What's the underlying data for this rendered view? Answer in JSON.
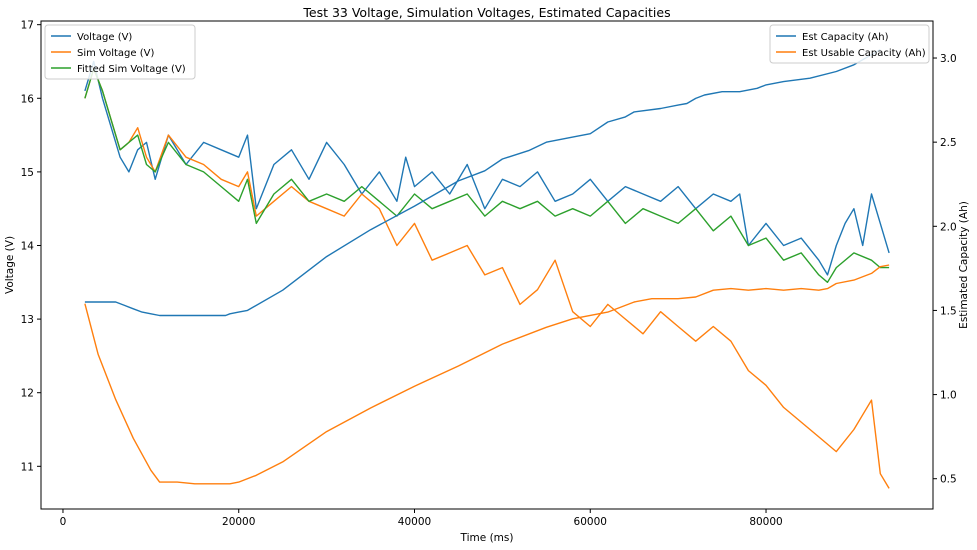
{
  "chart_data": {
    "type": "line",
    "title": "Test 33 Voltage, Simulation Voltages, Estimated Capacities",
    "xlabel": "Time (ms)",
    "ylabel_left": "Voltage (V)",
    "ylabel_right": "Estimated Capacity (Ah)",
    "xlim": [
      -2500,
      99000
    ],
    "ylim_left": [
      10.42,
      17.05
    ],
    "ylim_right": [
      0.32,
      3.22
    ],
    "x_ticks": [
      "0",
      "20000",
      "40000",
      "60000",
      "80000"
    ],
    "x_tick_values": [
      0,
      20000,
      40000,
      60000,
      80000
    ],
    "y_left_ticks": [
      "11",
      "12",
      "13",
      "14",
      "15",
      "16",
      "17"
    ],
    "y_left_tick_values": [
      11,
      12,
      13,
      14,
      15,
      16,
      17
    ],
    "y_right_ticks": [
      "0.5",
      "1.0",
      "1.5",
      "2.0",
      "2.5",
      "3.0"
    ],
    "y_right_tick_values": [
      0.5,
      1.0,
      1.5,
      2.0,
      2.5,
      3.0
    ],
    "grid": false,
    "legend_left_position": "top-left",
    "legend_right_position": "top-right",
    "series": [
      {
        "name": "Voltage (V)",
        "axis": "left",
        "color": "#1f77b4",
        "x": [
          2500,
          3500,
          4500,
          5500,
          6500,
          7500,
          8500,
          9500,
          10500,
          12000,
          14000,
          16000,
          18000,
          20000,
          21000,
          22000,
          24000,
          26000,
          28000,
          30000,
          32000,
          34000,
          36000,
          38000,
          39000,
          40000,
          42000,
          44000,
          46000,
          48000,
          50000,
          52000,
          54000,
          56000,
          58000,
          60000,
          62000,
          64000,
          66000,
          68000,
          70000,
          72000,
          74000,
          76000,
          77000,
          78000,
          80000,
          82000,
          84000,
          86000,
          87000,
          88000,
          89000,
          90000,
          91000,
          92000,
          93000,
          94000
        ],
        "y": [
          16.1,
          16.5,
          16.0,
          15.6,
          15.2,
          15.0,
          15.3,
          15.4,
          14.9,
          15.5,
          15.1,
          15.4,
          15.3,
          15.2,
          15.5,
          14.5,
          15.1,
          15.3,
          14.9,
          15.4,
          15.1,
          14.7,
          15.0,
          14.6,
          15.2,
          14.8,
          15.0,
          14.7,
          15.1,
          14.5,
          14.9,
          14.8,
          15.0,
          14.6,
          14.7,
          14.9,
          14.6,
          14.8,
          14.7,
          14.6,
          14.8,
          14.5,
          14.7,
          14.6,
          14.7,
          14.0,
          14.3,
          14.0,
          14.1,
          13.8,
          13.6,
          14.0,
          14.3,
          14.5,
          14.0,
          14.7,
          14.3,
          13.9
        ]
      },
      {
        "name": "Sim Voltage (V)",
        "axis": "left",
        "color": "#ff7f0e",
        "x": [
          2500,
          3500,
          4500,
          5500,
          6500,
          7500,
          8500,
          9500,
          10500,
          12000,
          14000,
          16000,
          18000,
          20000,
          21000,
          22000,
          24000,
          26000,
          28000,
          30000,
          32000,
          34000,
          36000,
          38000,
          40000,
          42000,
          44000,
          46000,
          48000,
          50000,
          52000,
          54000,
          56000,
          58000,
          60000,
          62000,
          64000,
          66000,
          68000,
          70000,
          72000,
          74000,
          76000,
          78000,
          80000,
          82000,
          84000,
          86000,
          88000,
          90000,
          91000,
          92000,
          93000,
          94000
        ],
        "y": [
          16.0,
          16.4,
          16.1,
          15.7,
          15.3,
          15.4,
          15.6,
          15.2,
          15.0,
          15.5,
          15.2,
          15.1,
          14.9,
          14.8,
          15.0,
          14.4,
          14.6,
          14.8,
          14.6,
          14.5,
          14.4,
          14.7,
          14.5,
          14.0,
          14.3,
          13.8,
          13.9,
          14.0,
          13.6,
          13.7,
          13.2,
          13.4,
          13.8,
          13.1,
          12.9,
          13.2,
          13.0,
          12.8,
          13.1,
          12.9,
          12.7,
          12.9,
          12.7,
          12.3,
          12.1,
          11.8,
          11.6,
          11.4,
          11.2,
          11.5,
          11.7,
          11.9,
          10.9,
          10.7
        ]
      },
      {
        "name": "Fitted Sim Voltage (V)",
        "axis": "left",
        "color": "#2ca02c",
        "x": [
          2500,
          3500,
          4500,
          5500,
          6500,
          7500,
          8500,
          9500,
          10500,
          12000,
          14000,
          16000,
          18000,
          20000,
          21000,
          22000,
          24000,
          26000,
          28000,
          30000,
          32000,
          34000,
          36000,
          38000,
          40000,
          42000,
          44000,
          46000,
          48000,
          50000,
          52000,
          54000,
          56000,
          58000,
          60000,
          62000,
          64000,
          66000,
          68000,
          70000,
          72000,
          74000,
          76000,
          78000,
          80000,
          82000,
          84000,
          86000,
          87000,
          88000,
          90000,
          92000,
          93000,
          94000
        ],
        "y": [
          16.0,
          16.4,
          16.1,
          15.7,
          15.3,
          15.4,
          15.5,
          15.1,
          15.0,
          15.4,
          15.1,
          15.0,
          14.8,
          14.6,
          14.9,
          14.3,
          14.7,
          14.9,
          14.6,
          14.7,
          14.6,
          14.8,
          14.6,
          14.4,
          14.7,
          14.5,
          14.6,
          14.7,
          14.4,
          14.6,
          14.5,
          14.6,
          14.4,
          14.5,
          14.4,
          14.6,
          14.3,
          14.5,
          14.4,
          14.3,
          14.5,
          14.2,
          14.4,
          14.0,
          14.1,
          13.8,
          13.9,
          13.6,
          13.5,
          13.7,
          13.9,
          13.8,
          13.7,
          13.7
        ]
      },
      {
        "name": "Est Capacity (Ah)",
        "axis": "right",
        "color": "#1f77b4",
        "x": [
          2500,
          6000,
          7000,
          8000,
          9000,
          10000,
          11000,
          13000,
          15000,
          17000,
          18500,
          19000,
          20000,
          21000,
          25000,
          30000,
          35000,
          40000,
          45000,
          48000,
          50000,
          53000,
          55000,
          58000,
          60000,
          62000,
          64000,
          65000,
          68000,
          70000,
          71000,
          72000,
          73000,
          75000,
          77000,
          79000,
          80000,
          82000,
          85000,
          88000,
          90000,
          92000,
          93000
        ],
        "y": [
          1.55,
          1.55,
          1.53,
          1.51,
          1.49,
          1.48,
          1.47,
          1.47,
          1.47,
          1.47,
          1.47,
          1.48,
          1.49,
          1.5,
          1.62,
          1.82,
          1.98,
          2.12,
          2.27,
          2.33,
          2.4,
          2.45,
          2.5,
          2.53,
          2.55,
          2.62,
          2.65,
          2.68,
          2.7,
          2.72,
          2.73,
          2.76,
          2.78,
          2.8,
          2.8,
          2.82,
          2.84,
          2.86,
          2.88,
          2.92,
          2.96,
          3.02,
          3.05
        ]
      },
      {
        "name": "Est Usable Capacity (Ah)",
        "axis": "right",
        "color": "#ff7f0e",
        "x": [
          2500,
          4000,
          6000,
          8000,
          10000,
          11000,
          13000,
          15000,
          17000,
          19000,
          20000,
          22000,
          25000,
          30000,
          35000,
          40000,
          45000,
          50000,
          55000,
          58000,
          62000,
          64000,
          65000,
          67000,
          70000,
          72000,
          74000,
          76000,
          78000,
          80000,
          82000,
          84000,
          86000,
          87000,
          88000,
          90000,
          92000,
          93000,
          94000
        ],
        "y": [
          1.54,
          1.24,
          0.97,
          0.74,
          0.55,
          0.48,
          0.48,
          0.47,
          0.47,
          0.47,
          0.48,
          0.52,
          0.6,
          0.78,
          0.92,
          1.05,
          1.17,
          1.3,
          1.4,
          1.45,
          1.49,
          1.53,
          1.55,
          1.57,
          1.57,
          1.58,
          1.62,
          1.63,
          1.62,
          1.63,
          1.62,
          1.63,
          1.62,
          1.63,
          1.66,
          1.68,
          1.72,
          1.76,
          1.77
        ]
      }
    ]
  }
}
